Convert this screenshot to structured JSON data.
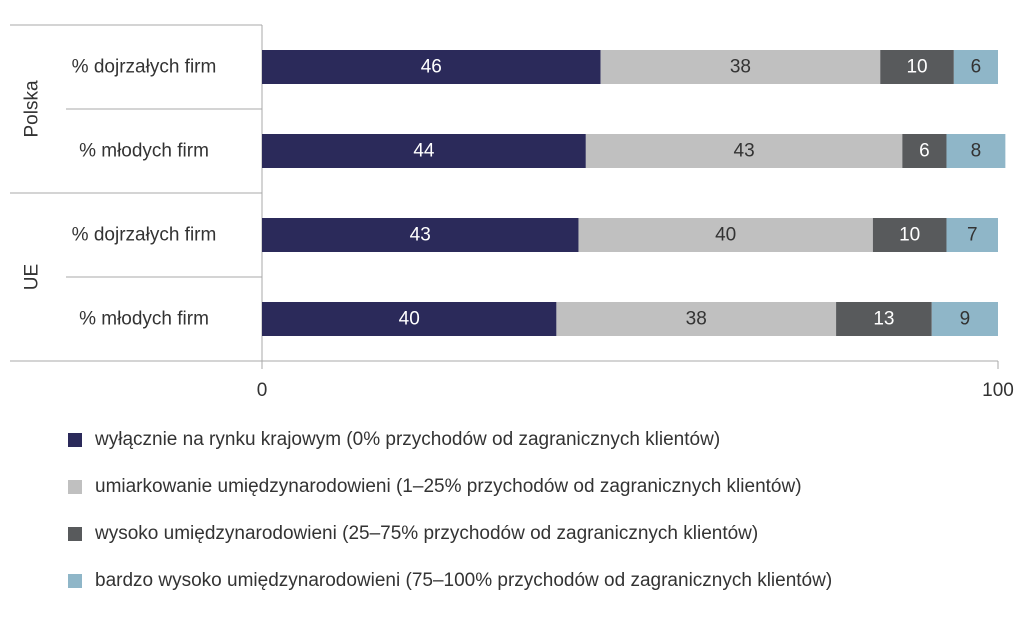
{
  "chart_data": {
    "type": "bar",
    "orientation": "horizontal",
    "stacked": true,
    "groups": [
      {
        "name": "Polska",
        "categories": [
          "% dojrzałych firm",
          "% młodych firm"
        ]
      },
      {
        "name": "UE",
        "categories": [
          "% dojrzałych firm",
          "% młodych firm"
        ]
      }
    ],
    "series": [
      {
        "name": "wyłącznie na rynku krajowym (0% przychodów od zagranicznych klientów)",
        "color": "#2b2a5a",
        "values": [
          46,
          44,
          43,
          40
        ]
      },
      {
        "name": "umiarkowanie umiędzynarodowieni (1–25% przychodów od zagranicznych klientów)",
        "color": "#c0c0c0",
        "values": [
          38,
          43,
          40,
          38
        ]
      },
      {
        "name": "wysoko umiędzynarodowieni (25–75% przychodów od zagranicznych klientów)",
        "color": "#585a5c",
        "values": [
          10,
          6,
          10,
          13
        ]
      },
      {
        "name": "bardzo wysoko umiędzynarodowieni (75–100% przychodów od zagranicznych klientów)",
        "color": "#8fb6c8",
        "values": [
          6,
          8,
          7,
          9
        ]
      }
    ],
    "xlim": [
      0,
      100
    ],
    "xticks": [
      "0",
      "100"
    ],
    "label_colors": [
      "#ffffff",
      "#333333",
      "#ffffff",
      "#333333"
    ],
    "legend_position": "bottom",
    "grid": false
  }
}
